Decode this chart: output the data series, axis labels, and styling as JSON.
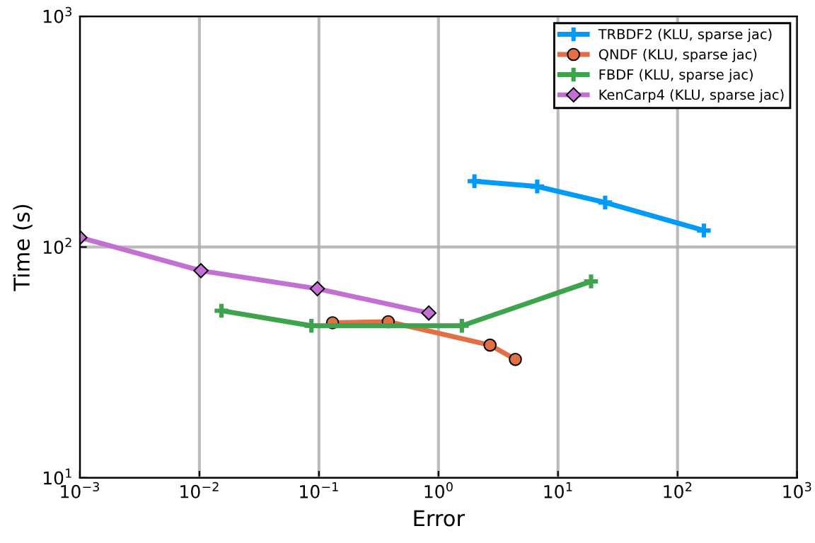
{
  "chart_data": {
    "type": "line",
    "xlabel": "Error",
    "ylabel": "Time (s)",
    "log": "xy",
    "xlim": [
      0.001,
      1000
    ],
    "ylim": [
      10,
      1000
    ],
    "xticks": [
      {
        "value": 0.001,
        "label": "10$^{−3}$"
      },
      {
        "value": 0.01,
        "label": "10$^{−2}$"
      },
      {
        "value": 0.1,
        "label": "10$^{−1}$"
      },
      {
        "value": 1,
        "label": "10$^{0}$"
      },
      {
        "value": 10,
        "label": "10$^{1}$"
      },
      {
        "value": 100,
        "label": "10$^{2}$"
      },
      {
        "value": 1000,
        "label": "10$^{3}$"
      }
    ],
    "yticks": [
      {
        "value": 10,
        "label": "10$^{1}$"
      },
      {
        "value": 100,
        "label": "10$^{2}$"
      },
      {
        "value": 1000,
        "label": "10$^{3}$"
      }
    ],
    "grid": true,
    "legend": "top right",
    "series": [
      {
        "name": "TRBDF2 (KLU, sparse jac)",
        "color": "#009af9",
        "marker": "cross",
        "x": [
          2.0,
          6.7,
          24.8,
          166
        ],
        "values": [
          193,
          183,
          156,
          118
        ]
      },
      {
        "name": "QNDF (KLU, sparse jac)",
        "color": "#e26f46",
        "marker": "circle",
        "x": [
          0.13,
          0.38,
          2.7,
          4.4
        ],
        "values": [
          47,
          47.5,
          37.6,
          32.6
        ]
      },
      {
        "name": "FBDF (KLU, sparse jac)",
        "color": "#3da44d",
        "marker": "cross",
        "x": [
          0.0153,
          0.0865,
          1.57,
          18.9
        ],
        "values": [
          53,
          45.6,
          45.6,
          71
        ]
      },
      {
        "name": "KenCarp4 (KLU, sparse jac)",
        "color": "#c271d2",
        "marker": "diamond",
        "x": [
          0.001,
          0.0103,
          0.097,
          0.83
        ],
        "values": [
          110,
          79,
          66,
          51.8
        ]
      }
    ]
  }
}
